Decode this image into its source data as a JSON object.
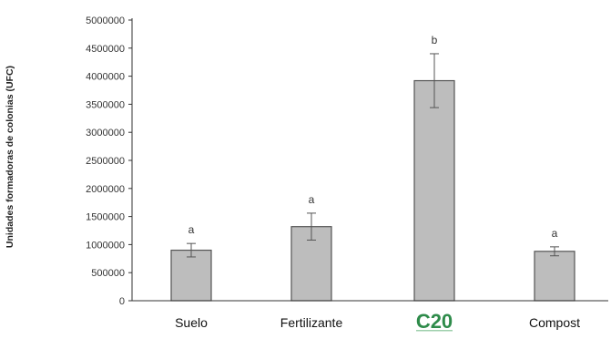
{
  "chart_data": {
    "type": "bar",
    "categories": [
      "Suelo",
      "Fertilizante",
      "C20",
      "Compost"
    ],
    "category_logo": {
      "C20": "c20-logo"
    },
    "values": [
      900000,
      1320000,
      3920000,
      880000
    ],
    "errors": [
      120000,
      240000,
      480000,
      80000
    ],
    "significance": [
      "a",
      "a",
      "b",
      "a"
    ],
    "ylabel": "Unidades formadoras de colonias (UFC)",
    "ylim": [
      0,
      5000000
    ],
    "yticks": [
      0,
      500000,
      1000000,
      1500000,
      2000000,
      2500000,
      3000000,
      3500000,
      4000000,
      4500000,
      5000000
    ],
    "ytick_labels": [
      "0",
      "500000",
      "1000000",
      "1500000",
      "2000000",
      "2500000",
      "3000000",
      "3500000",
      "4000000",
      "4500000",
      "5000000"
    ],
    "grid": false,
    "colors": {
      "bar_fill": "#bdbdbd",
      "bar_stroke": "#555555",
      "axis": "#333333",
      "logo_green": "#2e8b4a"
    }
  }
}
